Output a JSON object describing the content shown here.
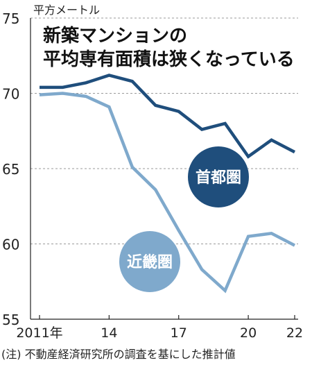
{
  "chart_data": {
    "type": "line",
    "title": "新築マンションの\n平均専有面積は狭くなっている",
    "ylabel": "平方メートル",
    "note": "(注) 不動産経済研究所の調査を基にした推計値",
    "x": [
      2011,
      2012,
      2013,
      2014,
      2015,
      2016,
      2017,
      2018,
      2019,
      2020,
      2021,
      2022
    ],
    "xticks": [
      {
        "value": 2011,
        "label": "2011年"
      },
      {
        "value": 2014,
        "label": "14"
      },
      {
        "value": 2017,
        "label": "17"
      },
      {
        "value": 2020,
        "label": "20"
      },
      {
        "value": 2022,
        "label": "22"
      }
    ],
    "yticks": [
      55,
      60,
      65,
      70,
      75
    ],
    "xlim": [
      2011,
      2022
    ],
    "ylim": [
      55,
      75
    ],
    "grid": true,
    "series": [
      {
        "name": "首都圏",
        "color": "#1f4e7c",
        "values": [
          70.4,
          70.4,
          70.7,
          71.2,
          70.8,
          69.2,
          68.8,
          67.6,
          68.0,
          65.8,
          66.9,
          66.1
        ]
      },
      {
        "name": "近畿圏",
        "color": "#7fa9cc",
        "values": [
          69.9,
          70.0,
          69.8,
          69.1,
          65.1,
          63.6,
          60.9,
          58.3,
          56.9,
          60.5,
          60.7,
          59.9
        ]
      }
    ]
  }
}
